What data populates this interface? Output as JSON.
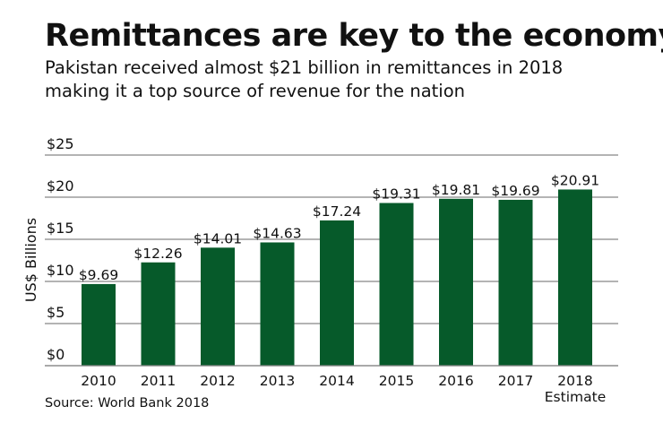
{
  "title": "Remittances are key to the economy",
  "subtitle_lines": [
    "Pakistan received almost $21 billion in remittances in 2018",
    "making it a top source of revenue for the nation"
  ],
  "source": "Source: World Bank 2018",
  "colors": {
    "bar": "#065a2a",
    "grid": "#888888"
  },
  "chart_data": {
    "type": "bar",
    "categories": [
      "2010",
      "2011",
      "2012",
      "2013",
      "2014",
      "2015",
      "2016",
      "2017",
      "2018"
    ],
    "category_sublabels": [
      "",
      "",
      "",
      "",
      "",
      "",
      "",
      "",
      "Estimate"
    ],
    "values": [
      9.69,
      12.26,
      14.01,
      14.63,
      17.24,
      19.31,
      19.81,
      19.69,
      20.91
    ],
    "data_labels": [
      "$9.69",
      "$12.26",
      "$14.01",
      "$14.63",
      "$17.24",
      "$19.31",
      "$19.81",
      "$19.69",
      "$20.91"
    ],
    "ylabel": "US$ Billions",
    "xlabel": "",
    "ylim": [
      0,
      25
    ],
    "yticks": [
      0,
      5,
      10,
      15,
      20,
      25
    ],
    "ytick_labels": [
      "$0",
      "$5",
      "$10",
      "$15",
      "$20",
      "$25"
    ],
    "grid": true
  }
}
